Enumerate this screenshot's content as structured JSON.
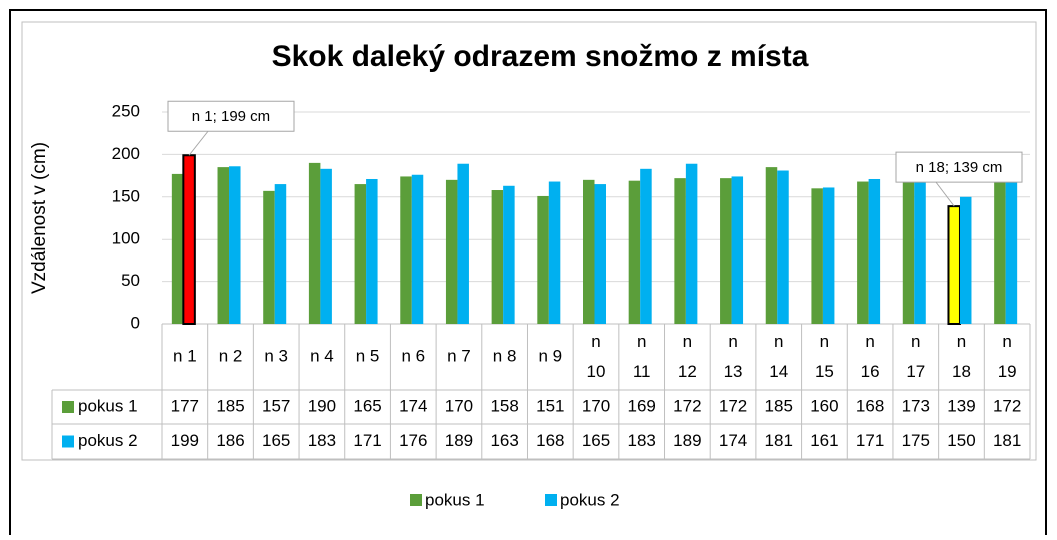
{
  "chart_data": {
    "type": "bar",
    "title": "Skok daleký odrazem snožmo z místa",
    "y_label": "Vzdálenost v (cm)",
    "categories": [
      "n 1",
      "n 2",
      "n 3",
      "n 4",
      "n 5",
      "n 6",
      "n 7",
      "n 8",
      "n 9",
      "n 10",
      "n 11",
      "n 12",
      "n 13",
      "n 14",
      "n 15",
      "n 16",
      "n 17",
      "n 18",
      "n 19"
    ],
    "series": [
      {
        "name": "pokus 1",
        "color": "#5b9e3a",
        "values": [
          177,
          185,
          157,
          190,
          165,
          174,
          170,
          158,
          151,
          170,
          169,
          172,
          172,
          185,
          160,
          168,
          173,
          139,
          172
        ],
        "highlight_color": "#ffff00",
        "value_labels": [
          null,
          null,
          null,
          null,
          null,
          null,
          null,
          null,
          null,
          null,
          null,
          null,
          null,
          null,
          null,
          null,
          null,
          "n 18; 139 cm",
          null
        ]
      },
      {
        "name": "pokus 2",
        "color": "#00b0f0",
        "values": [
          199,
          186,
          165,
          183,
          171,
          176,
          189,
          163,
          168,
          165,
          183,
          189,
          174,
          181,
          161,
          171,
          175,
          150,
          181
        ],
        "highlight_color": "#ff0000",
        "value_labels": [
          "n 1; 199 cm",
          null,
          null,
          null,
          null,
          null,
          null,
          null,
          null,
          null,
          null,
          null,
          null,
          null,
          null,
          null,
          null,
          null,
          null
        ]
      }
    ],
    "ylim": [
      0,
      250
    ],
    "yticks": [
      0,
      50,
      100,
      150,
      200,
      250
    ],
    "grid": true,
    "legend": "bottom",
    "data_table": true
  }
}
